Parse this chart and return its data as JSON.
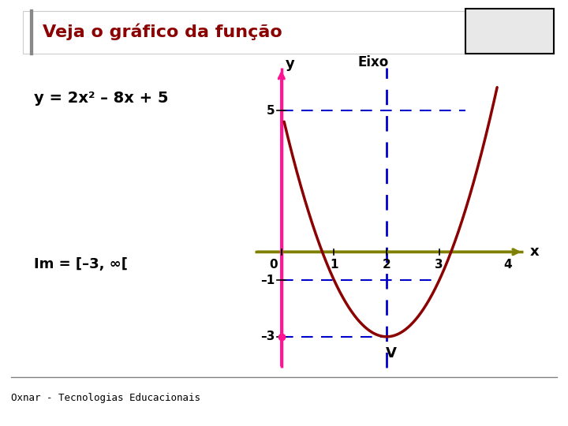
{
  "title": "Veja o gráfico da função",
  "title_color": "#8B0000",
  "equation": "y = 2x² – 8x + 5",
  "im_label": "Im = [–3, ∞[",
  "footer": "Oxnar - Tecnologias Educacionais",
  "axis_of_symmetry": 2.0,
  "vertex": [
    2.0,
    -3.0
  ],
  "curve_color": "#8B0000",
  "yaxis_color": "#FF1493",
  "xaxis_color": "#808000",
  "dashed_color": "#0000CD",
  "background_color": "#FFFFFF",
  "eixo_label": "Eixo"
}
